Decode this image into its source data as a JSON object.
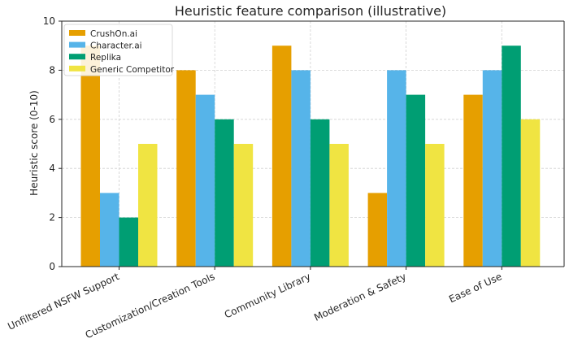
{
  "chart_data": {
    "type": "bar",
    "title": "Heuristic feature comparison (illustrative)",
    "xlabel": "",
    "ylabel": "Heuristic score (0-10)",
    "ylim": [
      0,
      10
    ],
    "yticks": [
      0,
      2,
      4,
      6,
      8,
      10
    ],
    "grid": true,
    "legend_position": "top-left",
    "categories": [
      "Unfiltered NSFW Support",
      "Customization/Creation Tools",
      "Community Library",
      "Moderation & Safety",
      "Ease of Use"
    ],
    "series": [
      {
        "name": "CrushOn.ai",
        "color": "#E69F00",
        "values": [
          9,
          8,
          9,
          3,
          7
        ]
      },
      {
        "name": "Character.ai",
        "color": "#56B4E9",
        "values": [
          3,
          7,
          8,
          8,
          8
        ]
      },
      {
        "name": "Replika",
        "color": "#009E73",
        "values": [
          2,
          6,
          6,
          7,
          9
        ]
      },
      {
        "name": "Generic Competitor",
        "color": "#F0E442",
        "values": [
          5,
          5,
          5,
          5,
          6
        ]
      }
    ]
  }
}
